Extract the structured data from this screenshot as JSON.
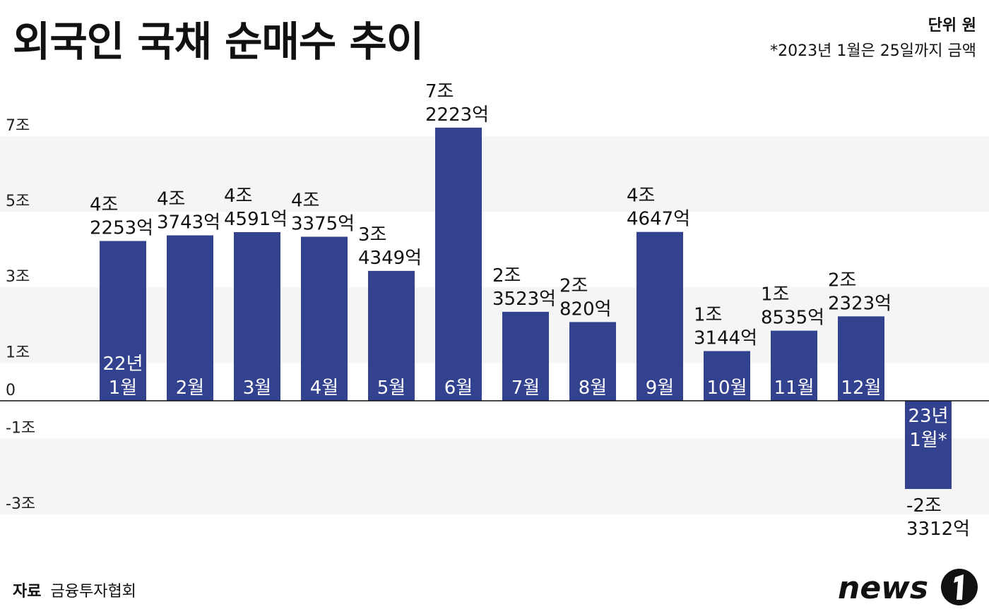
{
  "header": {
    "title": "외국인 국채 순매수 추이",
    "unit": "단위 원",
    "note": "*2023년 1월은 25일까지 금액"
  },
  "footer": {
    "source_label": "자료",
    "source_value": "금융투자협회",
    "logo_text": "news1"
  },
  "colors": {
    "bar": "#33428f",
    "band": "#f5f5f5",
    "axis": "#111111",
    "label_inside": "#ffffff"
  },
  "chart_data": {
    "type": "bar",
    "title": "외국인 국채 순매수 추이",
    "xlabel": "",
    "ylabel": "단위 원",
    "ylim": [
      -3.7,
      7.3
    ],
    "yticks": [
      {
        "value": 7,
        "label": "7조"
      },
      {
        "value": 5,
        "label": "5조"
      },
      {
        "value": 3,
        "label": "3조"
      },
      {
        "value": 1,
        "label": "1조"
      },
      {
        "value": 0,
        "label": "0"
      },
      {
        "value": -1,
        "label": "-1조"
      },
      {
        "value": -3,
        "label": "-3조"
      }
    ],
    "categories": [
      "22년 1월",
      "2월",
      "3월",
      "4월",
      "5월",
      "6월",
      "7월",
      "8월",
      "9월",
      "10월",
      "11월",
      "12월",
      "23년 1월*"
    ],
    "values": [
      4.2253,
      4.3743,
      4.4591,
      4.3375,
      3.4349,
      7.2223,
      2.3523,
      2.082,
      4.4647,
      1.3144,
      1.8535,
      2.2323,
      -2.3312
    ],
    "bars": [
      {
        "cat_lines": [
          "22년",
          "1월"
        ],
        "value_lines": [
          "4조",
          "2253억"
        ]
      },
      {
        "cat_lines": [
          "2월"
        ],
        "value_lines": [
          "4조",
          "3743억"
        ]
      },
      {
        "cat_lines": [
          "3월"
        ],
        "value_lines": [
          "4조",
          "4591억"
        ]
      },
      {
        "cat_lines": [
          "4월"
        ],
        "value_lines": [
          "4조",
          "3375억"
        ]
      },
      {
        "cat_lines": [
          "5월"
        ],
        "value_lines": [
          "3조",
          "4349억"
        ]
      },
      {
        "cat_lines": [
          "6월"
        ],
        "value_lines": [
          "7조",
          "2223억"
        ]
      },
      {
        "cat_lines": [
          "7월"
        ],
        "value_lines": [
          "2조",
          "3523억"
        ]
      },
      {
        "cat_lines": [
          "8월"
        ],
        "value_lines": [
          "2조",
          "820억"
        ]
      },
      {
        "cat_lines": [
          "9월"
        ],
        "value_lines": [
          "4조",
          "4647억"
        ]
      },
      {
        "cat_lines": [
          "10월"
        ],
        "value_lines": [
          "1조",
          "3144억"
        ]
      },
      {
        "cat_lines": [
          "11월"
        ],
        "value_lines": [
          "1조",
          "8535억"
        ]
      },
      {
        "cat_lines": [
          "12월"
        ],
        "value_lines": [
          "2조",
          "2323억"
        ]
      },
      {
        "cat_lines": [
          "23년",
          "1월*"
        ],
        "value_lines": [
          "-2조",
          "3312억"
        ]
      }
    ]
  }
}
